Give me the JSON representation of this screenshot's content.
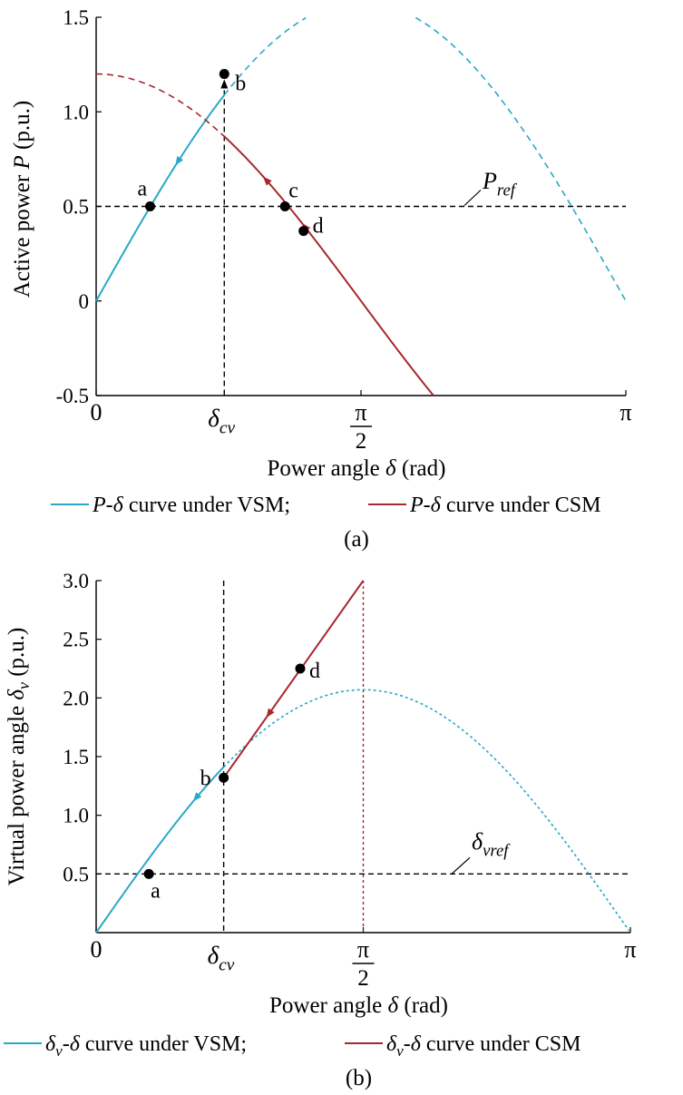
{
  "colors": {
    "vsm": "#2aa8c8",
    "csm": "#a8272f",
    "ref": "#000000",
    "axis": "#000000"
  },
  "chart_data": [
    {
      "type": "line",
      "panel_label": "(a)",
      "ylabel_text": "Active power ",
      "ylabel_var": "P",
      "ylabel_unit": " (p.u.)",
      "xlabel_text": "Power angle ",
      "xlabel_var": "δ",
      "xlabel_unit": " (rad)",
      "xlim": [
        0,
        3.1416
      ],
      "ylim": [
        -0.5,
        1.5
      ],
      "y_ticks": [
        {
          "value": -0.5,
          "label": "-0.5"
        },
        {
          "value": 0,
          "label": "0"
        },
        {
          "value": 0.5,
          "label": "0.5"
        },
        {
          "value": 1.0,
          "label": "1.0"
        },
        {
          "value": 1.5,
          "label": "1.5"
        }
      ],
      "x_ticks": [
        {
          "value": 0,
          "label": "0"
        },
        {
          "value": 1.5708,
          "label": "π",
          "den": "2"
        },
        {
          "value": 3.1416,
          "label": "π"
        }
      ],
      "delta_cv": {
        "value": 0.76,
        "main": "δ",
        "sub": "cv"
      },
      "ref_line": {
        "value": 0.5,
        "main": "P",
        "sub": "ref"
      },
      "series": [
        {
          "name": "P-δ curve under VSM",
          "color_key": "vsm",
          "amplitude": 1.58,
          "solid_to": 0.76,
          "arrow_at": 0.47,
          "arrow_dir": -1
        },
        {
          "name": "P-δ curve under CSM",
          "color_key": "csm",
          "amplitude": 1.2,
          "solid_from": 0.76,
          "solid_to": 2.0,
          "arrow_at": 0.99,
          "arrow_dir": -1,
          "arrow2_at": 1.22,
          "arrow2_dir": -1
        }
      ],
      "points": [
        {
          "label": "a",
          "x": 0.32,
          "y": 0.5
        },
        {
          "label": "b",
          "x": 0.76,
          "y": 1.2
        },
        {
          "label": "c",
          "x": 1.12,
          "y": 0.5
        },
        {
          "label": "d",
          "x": 1.23,
          "y": 0.37
        }
      ],
      "legend": [
        {
          "var": "P",
          "text": "-δ curve under VSM;",
          "color_key": "vsm"
        },
        {
          "var": "P",
          "text": "-δ curve under CSM",
          "color_key": "csm"
        }
      ]
    },
    {
      "type": "line",
      "panel_label": "(b)",
      "ylabel_text": "Virtual power angle ",
      "ylabel_var": "δ",
      "ylabel_sub": "v",
      "ylabel_unit": " (p.u.)",
      "xlabel_text": "Power angle ",
      "xlabel_var": "δ",
      "xlabel_unit": " (rad)",
      "xlim": [
        0,
        3.1416
      ],
      "ylim": [
        0,
        3.0
      ],
      "y_ticks": [
        {
          "value": 0.5,
          "label": "0.5"
        },
        {
          "value": 1.0,
          "label": "1.0"
        },
        {
          "value": 1.5,
          "label": "1.5"
        },
        {
          "value": 2.0,
          "label": "2.0"
        },
        {
          "value": 2.5,
          "label": "2.5"
        },
        {
          "value": 3.0,
          "label": "3.0"
        }
      ],
      "x_ticks": [
        {
          "value": 0,
          "label": "0"
        },
        {
          "value": 1.5708,
          "label": "π",
          "den": "2"
        },
        {
          "value": 3.1416,
          "label": "π"
        }
      ],
      "delta_cv": {
        "value": 0.75,
        "main": "δ",
        "sub": "cv"
      },
      "pi_half_line": 1.5708,
      "ref_line": {
        "value": 0.5,
        "main": "δ",
        "sub": "vref"
      },
      "vsm_curve": {
        "amplitude": 2.07,
        "solid_to": 0.75,
        "arrow_at": 0.57,
        "arrow_dir": -1
      },
      "csm_line": {
        "start": [
          0.75,
          1.32
        ],
        "end": [
          1.5708,
          3.0
        ],
        "arrow_at": 1.0,
        "arrow_dir": -1
      },
      "points": [
        {
          "label": "a",
          "x": 0.31,
          "y": 0.5
        },
        {
          "label": "b",
          "x": 0.75,
          "y": 1.32
        },
        {
          "label": "d",
          "x": 1.2,
          "y": 2.25
        }
      ],
      "legend": [
        {
          "var": "δ",
          "sub": "v",
          "text": "-δ curve under VSM;",
          "color_key": "vsm"
        },
        {
          "var": "δ",
          "sub": "v",
          "text": "-δ curve under CSM",
          "color_key": "csm"
        }
      ]
    }
  ]
}
